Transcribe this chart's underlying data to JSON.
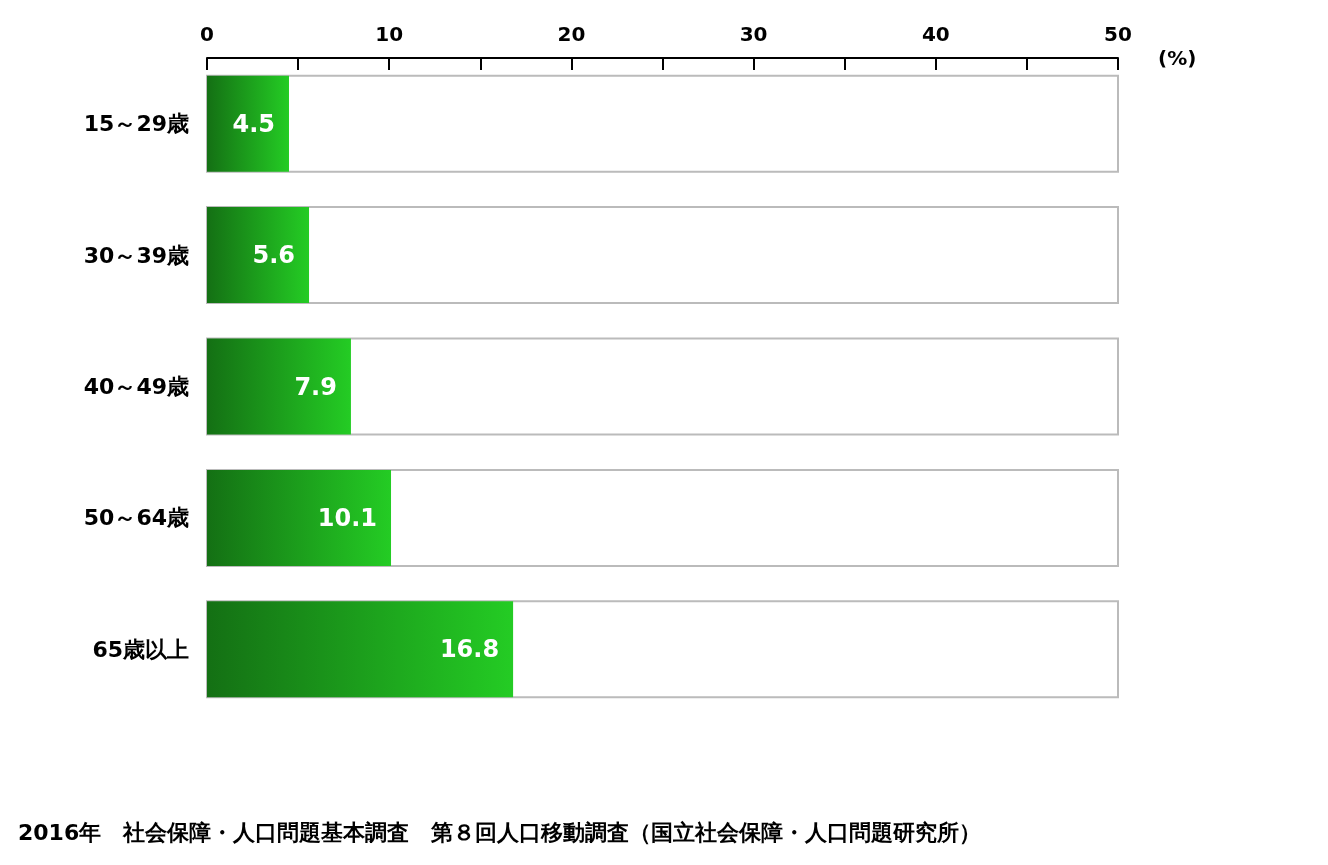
{
  "chart_data": {
    "type": "bar",
    "orientation": "horizontal",
    "categories": [
      "15～29歳",
      "30～39歳",
      "40～49歳",
      "50～64歳",
      "65歳以上"
    ],
    "values": [
      4.5,
      5.6,
      7.9,
      10.1,
      16.8
    ],
    "color": "#24cc24",
    "xlabel": "(%)",
    "xlim": [
      0,
      50
    ],
    "xticks": [
      0,
      {
        "value": 5,
        "label": null
      },
      10,
      {
        "value": 15,
        "label": null
      },
      20,
      {
        "value": 25,
        "label": null
      },
      30,
      {
        "value": 35,
        "label": null
      },
      40,
      {
        "value": 45,
        "label": null
      },
      50
    ],
    "data_labels": true,
    "grid": false,
    "annotations": [
      "2016年　社会保障・人口問題基本調査　第８回人口移動調査（国立社会保障・人口問題研究所）"
    ]
  }
}
